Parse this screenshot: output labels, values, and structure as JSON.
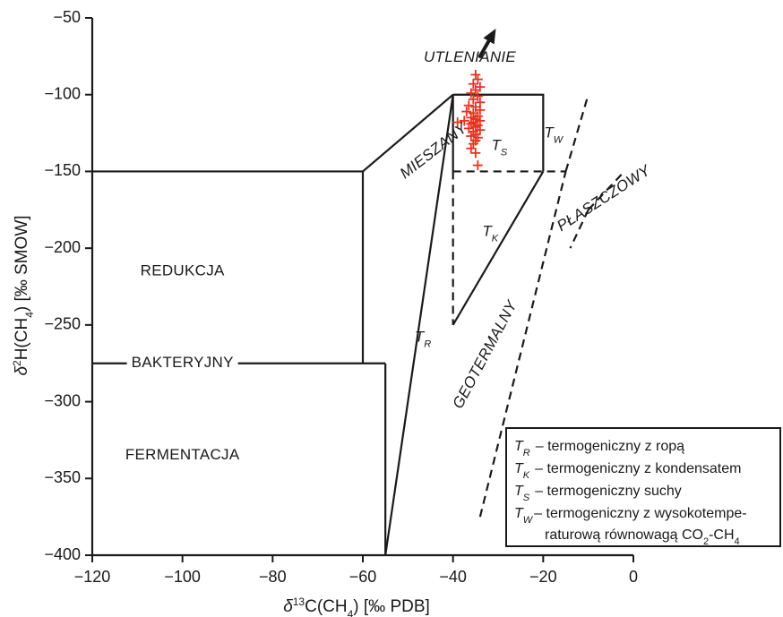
{
  "chart_data": {
    "type": "scatter",
    "title": "",
    "xlabel": {
      "prefix": "δ",
      "sup": "13",
      "main": "C(CH",
      "sub": "4",
      "suffix": ") [‰ PDB]"
    },
    "ylabel": {
      "prefix": "δ",
      "sup": "2",
      "main": "H(CH",
      "sub": "4",
      "suffix": ") [‰ SMOW]"
    },
    "xlim": [
      -120,
      0
    ],
    "ylim": [
      -400,
      -50
    ],
    "xticks": [
      -120,
      -100,
      -80,
      -60,
      -40,
      -20,
      0
    ],
    "yticks": [
      -50,
      -100,
      -150,
      -200,
      -250,
      -300,
      -350,
      -400
    ],
    "x_tick_labels": [
      "−120",
      "−100",
      "−80",
      "−60",
      "−40",
      "−20",
      "0"
    ],
    "y_tick_labels": [
      "−50",
      "−100",
      "−150",
      "−200",
      "−250",
      "−300",
      "−350",
      "−400"
    ],
    "grid": false,
    "marker": "+",
    "marker_color": "#e8321e",
    "series": [
      {
        "points": [
          [
            -35,
            -87
          ],
          [
            -34.5,
            -90
          ],
          [
            -35.5,
            -93
          ],
          [
            -34,
            -95
          ],
          [
            -35,
            -97
          ],
          [
            -36,
            -99
          ],
          [
            -34.5,
            -101
          ],
          [
            -35.5,
            -103
          ],
          [
            -34,
            -105
          ],
          [
            -36.5,
            -107
          ],
          [
            -35,
            -108
          ],
          [
            -34,
            -110
          ],
          [
            -37,
            -111
          ],
          [
            -35.5,
            -112
          ],
          [
            -34.5,
            -114
          ],
          [
            -36,
            -115
          ],
          [
            -35,
            -116
          ],
          [
            -34,
            -117
          ],
          [
            -37.5,
            -117
          ],
          [
            -35.5,
            -118
          ],
          [
            -36,
            -119
          ],
          [
            -34.5,
            -120
          ],
          [
            -35,
            -121
          ],
          [
            -36.5,
            -122
          ],
          [
            -34,
            -123
          ],
          [
            -35.5,
            -124
          ],
          [
            -35,
            -126
          ],
          [
            -36,
            -127
          ],
          [
            -34.5,
            -128
          ],
          [
            -35,
            -130
          ],
          [
            -35.5,
            -132
          ],
          [
            -36,
            -135
          ],
          [
            -35,
            -138
          ],
          [
            -34.5,
            -146
          ],
          [
            -39,
            -118
          ]
        ]
      }
    ],
    "regions": [
      {
        "label": "REDUKCJA",
        "x": -100,
        "y": -215,
        "italic": false,
        "rotate": 0,
        "anchor": "middle"
      },
      {
        "label": "BAKTERYJNY",
        "x": -100,
        "y": -275,
        "italic": false,
        "rotate": 0,
        "anchor": "middle"
      },
      {
        "label": "FERMENTACJA",
        "x": -100,
        "y": -335,
        "italic": false,
        "rotate": 0,
        "anchor": "middle"
      },
      {
        "label": "MIESZANY",
        "x": -51.2,
        "y": -153,
        "italic": true,
        "rotate": -38,
        "anchor": "start"
      },
      {
        "label": "UTLENIANIE",
        "x": -46.5,
        "y": -76,
        "italic": true,
        "rotate": 0,
        "anchor": "start"
      },
      {
        "label": "GEOTERMALNY",
        "x": -39,
        "y": -304,
        "italic": true,
        "rotate": -62,
        "anchor": "start"
      },
      {
        "label": "PŁASZCZOWY",
        "x": -16.5,
        "y": -187,
        "italic": true,
        "rotate": -33,
        "anchor": "start"
      }
    ],
    "field_labels": [
      {
        "main": "T",
        "sub": "S",
        "x": -31.5,
        "y": -136
      },
      {
        "main": "T",
        "sub": "W",
        "x": -19.8,
        "y": -128
      },
      {
        "main": "T",
        "sub": "K",
        "x": -33.5,
        "y": -192
      },
      {
        "main": "T",
        "sub": "R",
        "x": -48.5,
        "y": -261
      }
    ],
    "legend": {
      "position": "bottom-right",
      "items": [
        {
          "sym": "T",
          "sub": "R",
          "text": "– termogeniczny z ropą"
        },
        {
          "sym": "T",
          "sub": "K",
          "text": "– termogeniczny z kondensatem"
        },
        {
          "sym": "T",
          "sub": "S",
          "text": "– termogeniczny suchy"
        },
        {
          "sym": "T",
          "sub": "W",
          "text": "– termogeniczny z wysokotempe-",
          "cont_pre": "raturową równowagą CO",
          "cont_sub1": "2",
          "cont_mid": "-CH",
          "cont_sub2": "4"
        }
      ]
    },
    "boundaries": [
      {
        "style": "solid",
        "points": [
          [
            -120,
            -150
          ],
          [
            -60,
            -150
          ]
        ]
      },
      {
        "style": "solid",
        "points": [
          [
            -120,
            -275
          ],
          [
            -55,
            -275
          ]
        ]
      },
      {
        "style": "solid",
        "points": [
          [
            -60,
            -150
          ],
          [
            -60,
            -275
          ]
        ]
      },
      {
        "style": "solid",
        "points": [
          [
            -55,
            -275
          ],
          [
            -55,
            -400
          ]
        ]
      },
      {
        "style": "solid",
        "points": [
          [
            -60,
            -150
          ],
          [
            -40,
            -100
          ]
        ]
      },
      {
        "style": "solid",
        "points": [
          [
            -40,
            -100
          ],
          [
            -20,
            -100
          ],
          [
            -20,
            -150
          ]
        ]
      },
      {
        "style": "solid",
        "points": [
          [
            -40,
            -100
          ],
          [
            -40,
            -150
          ]
        ]
      },
      {
        "style": "solid",
        "points": [
          [
            -40,
            -100
          ],
          [
            -55,
            -400
          ]
        ]
      },
      {
        "style": "solid",
        "points": [
          [
            -20,
            -150
          ],
          [
            -40,
            -250
          ]
        ]
      },
      {
        "style": "dashed",
        "points": [
          [
            -40,
            -150
          ],
          [
            -40,
            -250
          ]
        ]
      },
      {
        "style": "dashed",
        "points": [
          [
            -40,
            -150
          ],
          [
            -15,
            -150
          ]
        ]
      },
      {
        "style": "dashed",
        "points": [
          [
            -15,
            -150
          ],
          [
            -10,
            -100
          ]
        ]
      },
      {
        "style": "dashed",
        "points": [
          [
            -34,
            -375
          ],
          [
            -15,
            -150
          ]
        ]
      },
      {
        "style": "dashed",
        "points": [
          [
            -10,
            -175
          ],
          [
            -2,
            -150
          ]
        ]
      },
      {
        "style": "dashed",
        "points": [
          [
            -10,
            -175
          ],
          [
            -14,
            -200
          ]
        ]
      }
    ],
    "arrow": {
      "from": [
        -34,
        -75
      ],
      "to": [
        -30.5,
        -57
      ]
    }
  }
}
